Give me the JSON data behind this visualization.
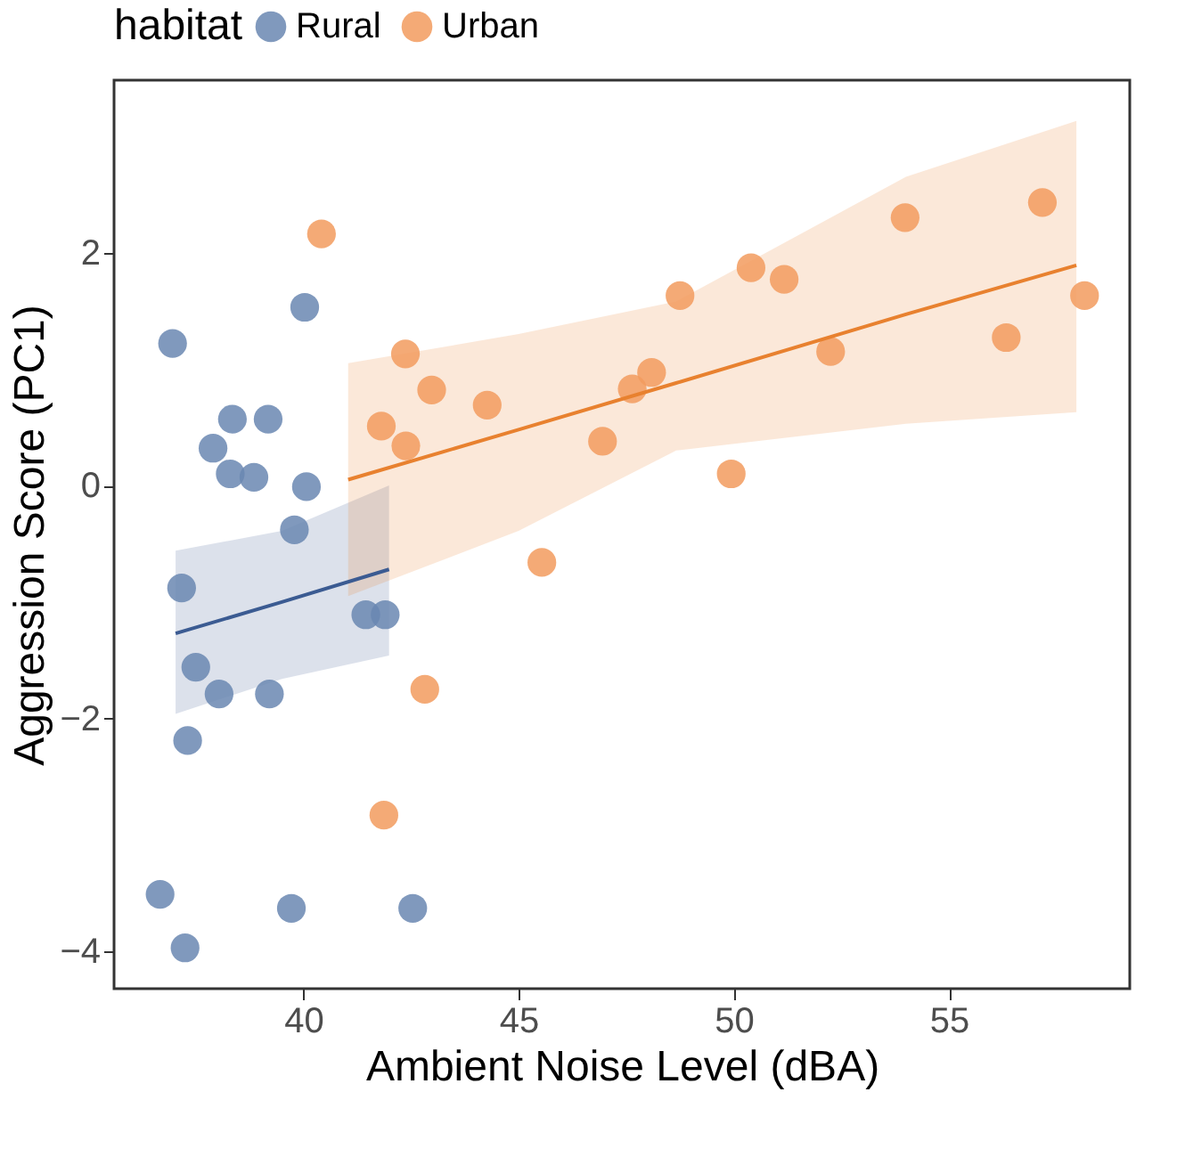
{
  "chart_data": {
    "type": "scatter",
    "xlabel": "Ambient Noise Level (dBA)",
    "ylabel": "Aggression Score (PC1)",
    "legend_title": "habitat",
    "legend": "top",
    "grid": false,
    "marker": "circle",
    "xlim": [
      35.6,
      59.2
    ],
    "ylim": [
      -4.32,
      3.48
    ],
    "xticks": [
      40,
      45,
      50,
      55
    ],
    "yticks": [
      -4,
      -2,
      0,
      2
    ],
    "series": [
      {
        "name": "Rural",
        "color": "#6a87b2",
        "x": [
          36.96,
          40.03,
          38.35,
          39.18,
          37.9,
          38.3,
          38.85,
          40.07,
          39.79,
          37.17,
          41.45,
          41.9,
          37.5,
          38.04,
          39.21,
          37.31,
          36.67,
          39.72,
          42.54,
          37.25
        ],
        "values": [
          1.22,
          1.53,
          0.57,
          0.57,
          0.32,
          0.1,
          0.07,
          -0.01,
          -0.38,
          -0.88,
          -1.11,
          -1.11,
          -1.56,
          -1.79,
          -1.79,
          -2.19,
          -3.51,
          -3.63,
          -3.63,
          -3.97
        ]
      },
      {
        "name": "Urban",
        "color": "#f29b5e",
        "x": [
          40.42,
          42.37,
          42.98,
          44.27,
          41.81,
          42.38,
          46.95,
          45.54,
          42.82,
          41.87,
          47.64,
          48.09,
          48.75,
          49.94,
          50.4,
          51.17,
          52.25,
          53.98,
          56.33,
          57.17,
          58.15
        ],
        "values": [
          2.16,
          1.13,
          0.82,
          0.69,
          0.51,
          0.34,
          0.38,
          -0.66,
          -1.75,
          -2.83,
          0.83,
          0.97,
          1.63,
          0.1,
          1.87,
          1.77,
          1.15,
          2.3,
          1.27,
          2.43,
          1.63
        ]
      },
      {
        "color": "#3b5b92",
        "type": "line",
        "marker": "none",
        "x": [
          37.03,
          39.5,
          41.99
        ],
        "values": [
          -1.27,
          -1.0,
          -0.72
        ],
        "lower": [
          -1.96,
          -1.66,
          -1.46
        ],
        "upper": [
          -0.56,
          -0.39,
          0.0
        ]
      },
      {
        "color": "#e8812f",
        "type": "line",
        "marker": "none",
        "x": [
          41.04,
          45,
          48.66,
          54,
          57.96
        ],
        "values": [
          0.05,
          0.48,
          0.88,
          1.47,
          1.89
        ],
        "lower": [
          -0.95,
          -0.39,
          0.3,
          0.53,
          0.63
        ],
        "upper": [
          1.05,
          1.3,
          1.58,
          2.65,
          3.13
        ]
      }
    ]
  }
}
